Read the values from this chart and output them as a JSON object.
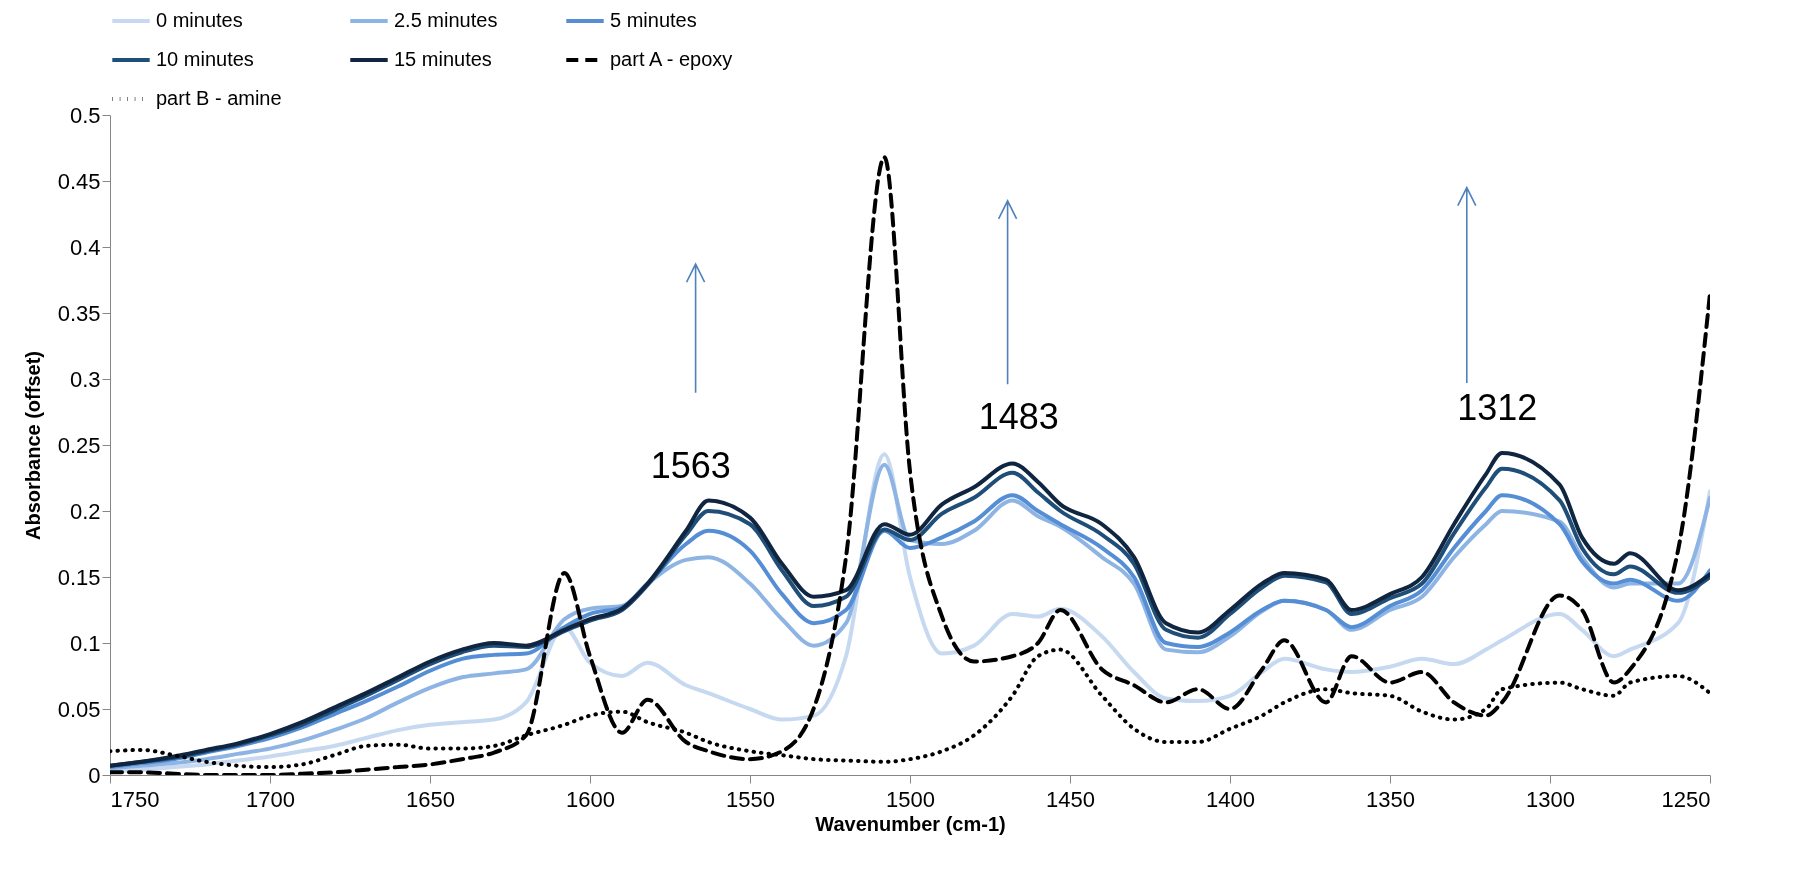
{
  "chart_data": {
    "type": "line",
    "xlabel": "Wavenumber (cm-1)",
    "ylabel": "Absorbance (offset)",
    "x": [
      1750,
      1740,
      1730,
      1720,
      1710,
      1700,
      1690,
      1680,
      1670,
      1660,
      1650,
      1640,
      1630,
      1620,
      1608,
      1600,
      1590,
      1582,
      1570,
      1563,
      1550,
      1540,
      1530,
      1520,
      1508,
      1500,
      1490,
      1480,
      1468,
      1460,
      1453,
      1440,
      1430,
      1420,
      1410,
      1400,
      1390,
      1383,
      1370,
      1362,
      1350,
      1340,
      1330,
      1320,
      1315,
      1297,
      1290,
      1280,
      1275,
      1260,
      1250
    ],
    "xlim": [
      1750,
      1250
    ],
    "xticks": [
      1750,
      1700,
      1650,
      1600,
      1550,
      1500,
      1450,
      1400,
      1350,
      1300,
      1250
    ],
    "ylim": [
      0,
      0.5
    ],
    "yticks": [
      0,
      0.05,
      0.1,
      0.15,
      0.2,
      0.25,
      0.3,
      0.35,
      0.4,
      0.45,
      0.5
    ],
    "legend": "top",
    "grid": false,
    "series": [
      {
        "name": "0 minutes",
        "color": "#c6d9f1",
        "line_style": "solid",
        "values": [
          0.003,
          0.004,
          0.006,
          0.008,
          0.011,
          0.014,
          0.018,
          0.022,
          0.028,
          0.034,
          0.038,
          0.04,
          0.042,
          0.055,
          0.112,
          0.085,
          0.075,
          0.085,
          0.068,
          0.062,
          0.05,
          0.042,
          0.045,
          0.09,
          0.243,
          0.15,
          0.092,
          0.098,
          0.122,
          0.12,
          0.126,
          0.105,
          0.078,
          0.058,
          0.056,
          0.06,
          0.078,
          0.088,
          0.08,
          0.078,
          0.082,
          0.088,
          0.084,
          0.095,
          0.102,
          0.122,
          0.11,
          0.09,
          0.095,
          0.115,
          0.215
        ]
      },
      {
        "name": "2.5 minutes",
        "color": "#8eb4e3",
        "line_style": "solid",
        "values": [
          0.005,
          0.007,
          0.009,
          0.012,
          0.016,
          0.02,
          0.026,
          0.034,
          0.043,
          0.055,
          0.066,
          0.074,
          0.077,
          0.08,
          0.118,
          0.126,
          0.128,
          0.145,
          0.163,
          0.165,
          0.145,
          0.118,
          0.098,
          0.115,
          0.235,
          0.178,
          0.175,
          0.185,
          0.208,
          0.196,
          0.188,
          0.165,
          0.145,
          0.095,
          0.093,
          0.105,
          0.124,
          0.132,
          0.125,
          0.11,
          0.125,
          0.135,
          0.165,
          0.19,
          0.2,
          0.192,
          0.165,
          0.142,
          0.145,
          0.145,
          0.21
        ]
      },
      {
        "name": "5 minutes",
        "color": "#558ed5",
        "line_style": "solid",
        "values": [
          0.006,
          0.009,
          0.012,
          0.017,
          0.022,
          0.028,
          0.036,
          0.046,
          0.056,
          0.067,
          0.079,
          0.088,
          0.091,
          0.092,
          0.112,
          0.122,
          0.127,
          0.145,
          0.175,
          0.185,
          0.17,
          0.137,
          0.115,
          0.125,
          0.185,
          0.172,
          0.18,
          0.192,
          0.212,
          0.2,
          0.19,
          0.172,
          0.15,
          0.1,
          0.097,
          0.108,
          0.125,
          0.132,
          0.125,
          0.112,
          0.128,
          0.14,
          0.172,
          0.2,
          0.212,
          0.19,
          0.162,
          0.145,
          0.148,
          0.132,
          0.155
        ]
      },
      {
        "name": "10 minutes",
        "color": "#1f4e79",
        "line_style": "solid",
        "values": [
          0.007,
          0.01,
          0.013,
          0.018,
          0.023,
          0.03,
          0.038,
          0.049,
          0.06,
          0.072,
          0.084,
          0.093,
          0.098,
          0.097,
          0.109,
          0.117,
          0.125,
          0.144,
          0.182,
          0.2,
          0.19,
          0.155,
          0.128,
          0.135,
          0.186,
          0.178,
          0.198,
          0.21,
          0.229,
          0.214,
          0.2,
          0.182,
          0.16,
          0.11,
          0.104,
          0.122,
          0.142,
          0.151,
          0.146,
          0.122,
          0.134,
          0.145,
          0.183,
          0.218,
          0.232,
          0.208,
          0.172,
          0.152,
          0.158,
          0.138,
          0.15
        ]
      },
      {
        "name": "15 minutes",
        "color": "#10253f",
        "line_style": "solid",
        "values": [
          0.007,
          0.01,
          0.014,
          0.019,
          0.024,
          0.031,
          0.04,
          0.051,
          0.062,
          0.074,
          0.086,
          0.095,
          0.1,
          0.098,
          0.11,
          0.118,
          0.126,
          0.145,
          0.185,
          0.208,
          0.195,
          0.16,
          0.135,
          0.14,
          0.19,
          0.182,
          0.205,
          0.218,
          0.236,
          0.222,
          0.205,
          0.19,
          0.165,
          0.115,
          0.108,
          0.125,
          0.145,
          0.153,
          0.148,
          0.125,
          0.137,
          0.15,
          0.19,
          0.228,
          0.244,
          0.22,
          0.18,
          0.16,
          0.168,
          0.14,
          0.152
        ]
      },
      {
        "name": "part A - epoxy",
        "color": "#000000",
        "line_style": "dashed",
        "values": [
          0.002,
          0.002,
          0.001,
          0,
          0,
          0,
          0.001,
          0.002,
          0.004,
          0.006,
          0.008,
          0.012,
          0.017,
          0.03,
          0.153,
          0.09,
          0.032,
          0.057,
          0.025,
          0.018,
          0.012,
          0.018,
          0.051,
          0.165,
          0.468,
          0.23,
          0.12,
          0.086,
          0.09,
          0.1,
          0.125,
          0.08,
          0.068,
          0.055,
          0.065,
          0.05,
          0.08,
          0.102,
          0.055,
          0.09,
          0.07,
          0.078,
          0.055,
          0.045,
          0.055,
          0.136,
          0.125,
          0.07,
          0.08,
          0.17,
          0.365
        ]
      },
      {
        "name": "part B - amine",
        "color": "#000000",
        "line_style": "dotted",
        "values": [
          0.018,
          0.019,
          0.015,
          0.01,
          0.007,
          0.006,
          0.008,
          0.015,
          0.022,
          0.023,
          0.02,
          0.02,
          0.022,
          0.03,
          0.038,
          0.045,
          0.048,
          0.04,
          0.032,
          0.025,
          0.018,
          0.015,
          0.012,
          0.011,
          0.01,
          0.012,
          0.018,
          0.03,
          0.06,
          0.09,
          0.095,
          0.06,
          0.035,
          0.025,
          0.025,
          0.035,
          0.045,
          0.055,
          0.065,
          0.062,
          0.06,
          0.048,
          0.042,
          0.05,
          0.065,
          0.07,
          0.065,
          0.06,
          0.07,
          0.075,
          0.062
        ]
      }
    ],
    "annotations": [
      "1563",
      "1483",
      "1312"
    ]
  }
}
